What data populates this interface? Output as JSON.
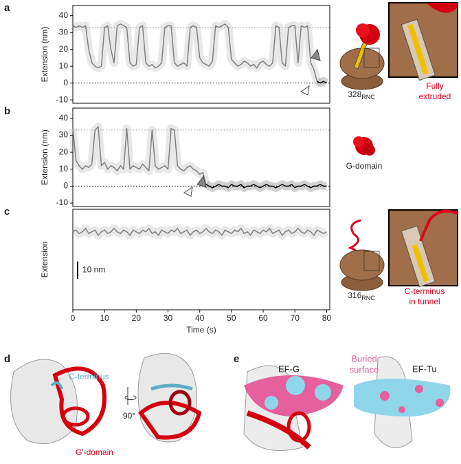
{
  "chart_data": [
    {
      "type": "line",
      "panel": "a",
      "ylabel": "Extension (nm)",
      "xlim": [
        0,
        81
      ],
      "ylim": [
        -12,
        46
      ],
      "yticks": [
        -10,
        0,
        10,
        20,
        30,
        40
      ],
      "hlines": [
        33,
        0
      ],
      "x": [
        0,
        1,
        2,
        3,
        4,
        5,
        6,
        7,
        8,
        9,
        10,
        11,
        12,
        13,
        14,
        15,
        16,
        17,
        18,
        19,
        20,
        21,
        22,
        23,
        24,
        25,
        26,
        27,
        28,
        29,
        30,
        31,
        32,
        33,
        34,
        35,
        36,
        37,
        38,
        39,
        40,
        41,
        42,
        43,
        44,
        45,
        46,
        47,
        48,
        49,
        50,
        51,
        52,
        53,
        54,
        55,
        56,
        57,
        58,
        59,
        60,
        61,
        62,
        63,
        64,
        65,
        66,
        67,
        68,
        69,
        70,
        71,
        72,
        73,
        74,
        75,
        76,
        77,
        78,
        79,
        80
      ],
      "series": [
        {
          "color": "#7f7f7f",
          "values": [
            34,
            33,
            34,
            33,
            34,
            20,
            12,
            10,
            9,
            10,
            33,
            34,
            20,
            12,
            34,
            35,
            34,
            33,
            12,
            10,
            11,
            33,
            34,
            12,
            10,
            11,
            9,
            10,
            12,
            33,
            34,
            34,
            12,
            10,
            11,
            12,
            10,
            33,
            34,
            33,
            15,
            12,
            11,
            10,
            13,
            34,
            33,
            34,
            35,
            33,
            14,
            12,
            10,
            11,
            13,
            12,
            10,
            11,
            9,
            12,
            13,
            11,
            10,
            12,
            34,
            33,
            12,
            10,
            33,
            34,
            34,
            12,
            34,
            33,
            34,
            12,
            8,
            1,
            null,
            null,
            null
          ]
        },
        {
          "color": "#000000",
          "values": [
            null,
            null,
            null,
            null,
            null,
            null,
            null,
            null,
            null,
            null,
            null,
            null,
            null,
            null,
            null,
            null,
            null,
            null,
            null,
            null,
            null,
            null,
            null,
            null,
            null,
            null,
            null,
            null,
            null,
            null,
            null,
            null,
            null,
            null,
            null,
            null,
            null,
            null,
            null,
            null,
            null,
            null,
            null,
            null,
            null,
            null,
            null,
            null,
            null,
            null,
            null,
            null,
            null,
            null,
            null,
            null,
            null,
            null,
            null,
            null,
            null,
            null,
            null,
            null,
            null,
            null,
            null,
            null,
            null,
            null,
            null,
            null,
            null,
            null,
            null,
            null,
            null,
            1,
            0,
            1,
            0
          ]
        }
      ]
    },
    {
      "type": "line",
      "panel": "b",
      "ylabel": "Extension (nm)",
      "xlim": [
        0,
        81
      ],
      "ylim": [
        -12,
        46
      ],
      "yticks": [
        -10,
        0,
        10,
        20,
        30,
        40
      ],
      "hlines": [
        33,
        0
      ],
      "x": [
        0,
        1,
        2,
        3,
        4,
        5,
        6,
        7,
        8,
        9,
        10,
        11,
        12,
        13,
        14,
        15,
        16,
        17,
        18,
        19,
        20,
        21,
        22,
        23,
        24,
        25,
        26,
        27,
        28,
        29,
        30,
        31,
        32,
        33,
        34,
        35,
        36,
        37,
        38,
        39,
        40,
        41,
        42,
        43,
        44,
        45,
        46,
        47,
        48,
        49,
        50,
        51,
        52,
        53,
        54,
        55,
        56,
        57,
        58,
        59,
        60,
        61,
        62,
        63,
        64,
        65,
        66,
        67,
        68,
        69,
        70,
        71,
        72,
        73,
        74,
        75,
        76,
        77,
        78,
        79,
        80
      ],
      "series": [
        {
          "color": "#7f7f7f",
          "values": [
            34,
            15,
            12,
            10,
            12,
            11,
            13,
            33,
            35,
            12,
            14,
            10,
            12,
            11,
            9,
            12,
            10,
            34,
            10,
            12,
            11,
            10,
            13,
            11,
            9,
            33,
            12,
            10,
            11,
            12,
            10,
            34,
            33,
            12,
            10,
            9,
            11,
            12,
            10,
            9,
            7,
            8,
            1,
            null,
            null,
            null,
            null,
            null,
            null,
            null,
            null,
            null,
            null,
            null,
            null,
            null,
            null,
            null,
            null,
            null,
            null,
            null,
            null,
            null,
            null,
            null,
            null,
            null,
            null,
            null,
            null,
            null,
            null,
            null,
            null,
            null,
            null,
            null,
            null,
            null,
            null
          ]
        },
        {
          "color": "#000000",
          "values": [
            null,
            null,
            null,
            null,
            null,
            null,
            null,
            null,
            null,
            null,
            null,
            null,
            null,
            null,
            null,
            null,
            null,
            null,
            null,
            null,
            null,
            null,
            null,
            null,
            null,
            null,
            null,
            null,
            null,
            null,
            null,
            null,
            null,
            null,
            null,
            null,
            null,
            null,
            null,
            null,
            null,
            null,
            1,
            0,
            -1,
            0,
            1,
            0,
            0,
            -1,
            1,
            0,
            0,
            1,
            -1,
            0,
            0,
            1,
            0,
            -1,
            0,
            1,
            0,
            0,
            -1,
            0,
            1,
            0,
            0,
            1,
            -1,
            0,
            0,
            1,
            0,
            -1,
            0,
            0,
            1,
            0,
            0
          ]
        }
      ]
    },
    {
      "type": "line",
      "panel": "c",
      "ylabel": "Extension",
      "xlabel": "Time (s)",
      "xlim": [
        0,
        81
      ],
      "ylim": [
        -12,
        46
      ],
      "xticks": [
        0,
        10,
        20,
        30,
        40,
        50,
        60,
        70,
        80
      ],
      "scale_bar": {
        "value": 10,
        "label": "10 nm"
      },
      "x": [
        0,
        1,
        2,
        3,
        4,
        5,
        6,
        7,
        8,
        9,
        10,
        11,
        12,
        13,
        14,
        15,
        16,
        17,
        18,
        19,
        20,
        21,
        22,
        23,
        24,
        25,
        26,
        27,
        28,
        29,
        30,
        31,
        32,
        33,
        34,
        35,
        36,
        37,
        38,
        39,
        40,
        41,
        42,
        43,
        44,
        45,
        46,
        47,
        48,
        49,
        50,
        51,
        52,
        53,
        54,
        55,
        56,
        57,
        58,
        59,
        60,
        61,
        62,
        63,
        64,
        65,
        66,
        67,
        68,
        69,
        70,
        71,
        72,
        73,
        74,
        75,
        76,
        77,
        78,
        79,
        80
      ],
      "series": [
        {
          "color": "#7f7f7f",
          "values": [
            33,
            34,
            32,
            33,
            35,
            32,
            33,
            34,
            31,
            33,
            34,
            32,
            33,
            35,
            33,
            32,
            34,
            33,
            31,
            34,
            33,
            32,
            34,
            33,
            35,
            32,
            33,
            31,
            34,
            33,
            32,
            34,
            33,
            35,
            32,
            33,
            34,
            31,
            33,
            34,
            32,
            33,
            35,
            33,
            32,
            34,
            33,
            31,
            34,
            33,
            32,
            34,
            33,
            35,
            32,
            33,
            31,
            34,
            33,
            32,
            34,
            33,
            35,
            32,
            33,
            34,
            31,
            33,
            34,
            32,
            33,
            35,
            33,
            32,
            34,
            33,
            31,
            34,
            33,
            32,
            33
          ]
        }
      ]
    }
  ],
  "illustrations": {
    "a": {
      "construct": {
        "number": "328",
        "sub": "RNC"
      },
      "caption": [
        "Fully",
        "extruded"
      ]
    },
    "b": {
      "caption": [
        "G-domain"
      ]
    },
    "c": {
      "construct": {
        "number": "316",
        "sub": "RNC"
      },
      "caption": [
        "C-terminus",
        "in tunnel"
      ]
    }
  },
  "panel_d": {
    "letter": "d",
    "c_terminus": "C-terminus",
    "rotation": "90°",
    "domain": "G′-domain"
  },
  "panel_e": {
    "letter": "e",
    "ef_g": "EF-G",
    "buried": [
      "Buried",
      "surface"
    ],
    "ef_tu": "EF-Tu"
  }
}
